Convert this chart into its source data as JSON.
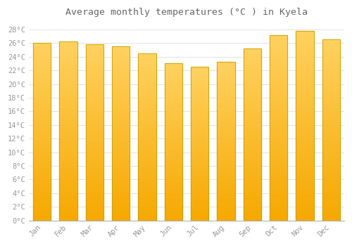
{
  "title": "Average monthly temperatures (°C ) in Kyela",
  "months": [
    "Jan",
    "Feb",
    "Mar",
    "Apr",
    "May",
    "Jun",
    "Jul",
    "Aug",
    "Sep",
    "Oct",
    "Nov",
    "Dec"
  ],
  "values": [
    26.0,
    26.2,
    25.8,
    25.5,
    24.5,
    23.0,
    22.5,
    23.3,
    25.2,
    27.2,
    27.8,
    26.6
  ],
  "bar_color_top": "#FFD060",
  "bar_color_bottom": "#F5A800",
  "bar_edge_color": "#C8A000",
  "background_color": "#FFFFFF",
  "plot_bg_color": "#FFFFFF",
  "grid_color": "#DDDDDD",
  "text_color": "#999999",
  "title_color": "#666666",
  "ylim": [
    0,
    29
  ],
  "yticks": [
    0,
    2,
    4,
    6,
    8,
    10,
    12,
    14,
    16,
    18,
    20,
    22,
    24,
    26,
    28
  ],
  "title_fontsize": 9.5,
  "tick_fontsize": 7.5,
  "bar_width": 0.68
}
